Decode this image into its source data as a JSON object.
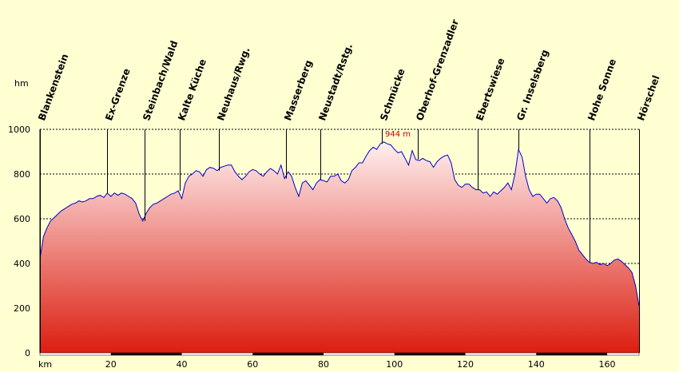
{
  "chart_data": {
    "type": "area",
    "ylabel": "hm",
    "xlabel": "km",
    "xlim": [
      0,
      169
    ],
    "ylim": [
      0,
      1000
    ],
    "yticks": [
      0,
      200,
      400,
      600,
      800,
      1000
    ],
    "xticks": [
      20,
      40,
      60,
      80,
      100,
      120,
      140,
      160
    ],
    "grid": true,
    "fill_gradient": [
      "#fff0f0",
      "#dc1e10"
    ],
    "line_color": "#0000cc",
    "peak_label": "944 m",
    "peak": {
      "x": 97,
      "y": 944
    },
    "places": [
      {
        "name": "Blankenstein",
        "x": 0
      },
      {
        "name": "Ex-Grenze",
        "x": 19
      },
      {
        "name": "Steinbach/Wald",
        "x": 29.5
      },
      {
        "name": "Kalte Küche",
        "x": 39.5
      },
      {
        "name": "Neuhaus/Rwg.",
        "x": 50.5
      },
      {
        "name": "Masserberg",
        "x": 69.5
      },
      {
        "name": "Neustadt/Rstg.",
        "x": 79
      },
      {
        "name": "Schmücke",
        "x": 96.5
      },
      {
        "name": "Oberhof-Grenzadler",
        "x": 106.5
      },
      {
        "name": "Ebertswiese",
        "x": 123.5
      },
      {
        "name": "Gr. Inselsberg",
        "x": 135
      },
      {
        "name": "Hohe Sonne",
        "x": 155
      },
      {
        "name": "Hörschel",
        "x": 169
      }
    ],
    "profile": {
      "x": [
        0,
        1,
        2,
        3,
        4,
        5,
        6,
        7,
        8,
        9,
        10,
        11,
        12,
        13,
        14,
        15,
        16,
        17,
        18,
        19,
        20,
        21,
        22,
        23,
        24,
        25,
        26,
        27,
        28,
        29,
        30,
        31,
        32,
        33,
        34,
        35,
        36,
        37,
        38,
        39,
        40,
        41,
        42,
        43,
        44,
        45,
        46,
        47,
        48,
        49,
        50,
        51,
        52,
        53,
        54,
        55,
        56,
        57,
        58,
        59,
        60,
        61,
        62,
        63,
        64,
        65,
        66,
        67,
        68,
        69,
        70,
        71,
        72,
        73,
        74,
        75,
        76,
        77,
        78,
        79,
        80,
        81,
        82,
        83,
        84,
        85,
        86,
        87,
        88,
        89,
        90,
        91,
        92,
        93,
        94,
        95,
        96,
        97,
        98,
        99,
        100,
        101,
        102,
        103,
        104,
        105,
        106,
        107,
        108,
        109,
        110,
        111,
        112,
        113,
        114,
        115,
        116,
        117,
        118,
        119,
        120,
        121,
        122,
        123,
        124,
        125,
        126,
        127,
        128,
        129,
        130,
        131,
        132,
        133,
        134,
        135,
        136,
        137,
        138,
        139,
        140,
        141,
        142,
        143,
        144,
        145,
        146,
        147,
        148,
        149,
        150,
        151,
        152,
        153,
        154,
        155,
        156,
        157,
        158,
        159,
        160,
        161,
        162,
        163,
        164,
        165,
        166,
        167,
        168,
        169
      ],
      "y": [
        420,
        520,
        560,
        590,
        605,
        620,
        635,
        645,
        655,
        665,
        670,
        680,
        675,
        680,
        690,
        690,
        700,
        705,
        695,
        715,
        700,
        715,
        705,
        715,
        710,
        700,
        690,
        670,
        620,
        590,
        625,
        650,
        665,
        670,
        680,
        690,
        700,
        710,
        715,
        725,
        690,
        760,
        790,
        800,
        815,
        810,
        790,
        820,
        830,
        825,
        815,
        830,
        835,
        840,
        840,
        810,
        790,
        775,
        790,
        810,
        820,
        815,
        800,
        790,
        810,
        825,
        815,
        800,
        840,
        780,
        810,
        790,
        740,
        700,
        760,
        770,
        750,
        730,
        760,
        775,
        770,
        765,
        790,
        790,
        800,
        770,
        760,
        775,
        815,
        830,
        850,
        850,
        880,
        905,
        920,
        910,
        935,
        944,
        935,
        930,
        910,
        895,
        900,
        870,
        840,
        905,
        865,
        860,
        870,
        860,
        855,
        830,
        855,
        870,
        880,
        885,
        850,
        775,
        750,
        740,
        755,
        755,
        740,
        730,
        730,
        715,
        720,
        700,
        720,
        710,
        725,
        740,
        760,
        730,
        800,
        910,
        875,
        790,
        730,
        700,
        710,
        710,
        690,
        670,
        690,
        695,
        680,
        650,
        600,
        560,
        530,
        500,
        460,
        440,
        420,
        405,
        400,
        405,
        395,
        400,
        390,
        400,
        415,
        420,
        410,
        395,
        380,
        360,
        300,
        210
      ]
    }
  }
}
